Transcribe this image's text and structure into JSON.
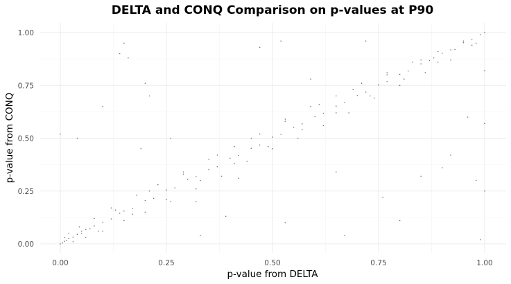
{
  "chart_data": {
    "type": "scatter",
    "title": "DELTA and CONQ Comparison on p-values at P90",
    "xlabel": "p-value from DELTA",
    "ylabel": "p-value from CONQ",
    "xlim": [
      0,
      1
    ],
    "ylim": [
      0,
      1
    ],
    "x_ticks": [
      0,
      0.25,
      0.5,
      0.75,
      1
    ],
    "y_ticks": [
      0,
      0.25,
      0.5,
      0.75,
      1
    ],
    "x_tick_labels": [
      "0.00",
      "0.25",
      "0.50",
      "0.75",
      "1.00"
    ],
    "y_tick_labels": [
      "0.00",
      "0.25",
      "0.50",
      "0.75",
      "1.00"
    ],
    "grid": true,
    "legend": "none",
    "point_color": "#000000",
    "background": "#ffffff",
    "series": [
      {
        "x": [
          0.0,
          0.005,
          0.01,
          0.015,
          0.02,
          0.03,
          0.04,
          0.05,
          0.06,
          0.07,
          0.08,
          0.1,
          0.12,
          0.14,
          0.15,
          0.17,
          0.2,
          0.22,
          0.25,
          0.27,
          0.3,
          0.32,
          0.35,
          0.37,
          0.4,
          0.42,
          0.45,
          0.47,
          0.5,
          0.52,
          0.55,
          0.57,
          0.6,
          0.62,
          0.65,
          0.67,
          0.7,
          0.72,
          0.75,
          0.77,
          0.8,
          0.82,
          0.85,
          0.87,
          0.9,
          0.92,
          0.95,
          0.97,
          0.99,
          1.0,
          0.02,
          0.03,
          0.045,
          0.06,
          0.08,
          0.1,
          0.12,
          0.15,
          0.18,
          0.2,
          0.23,
          0.26,
          0.29,
          0.32,
          0.35,
          0.38,
          0.41,
          0.44,
          0.47,
          0.5,
          0.53,
          0.56,
          0.59,
          0.62,
          0.65,
          0.68,
          0.71,
          0.74,
          0.77,
          0.8,
          0.83,
          0.86,
          0.89,
          0.92,
          0.95,
          0.98,
          0.01,
          0.05,
          0.09,
          0.13,
          0.17,
          0.21,
          0.25,
          0.29,
          0.33,
          0.37,
          0.41,
          0.45,
          0.49,
          0.53,
          0.57,
          0.61,
          0.65,
          0.69,
          0.73,
          0.77,
          0.81,
          0.85,
          0.89,
          0.93,
          0.97,
          0.0,
          0.04,
          0.1,
          0.14,
          0.15,
          0.16,
          0.19,
          0.2,
          0.21,
          0.26,
          0.32,
          0.33,
          0.39,
          0.47,
          0.52,
          0.59,
          0.65,
          0.72,
          0.76,
          0.8,
          0.85,
          0.88,
          0.9,
          0.92,
          0.96,
          0.98,
          0.99,
          1.0,
          1.0,
          1.0,
          0.53,
          0.42,
          0.67
        ],
        "y": [
          0.0,
          0.004,
          0.012,
          0.016,
          0.025,
          0.032,
          0.045,
          0.05,
          0.068,
          0.072,
          0.085,
          0.102,
          0.118,
          0.145,
          0.155,
          0.168,
          0.205,
          0.215,
          0.255,
          0.265,
          0.305,
          0.318,
          0.352,
          0.365,
          0.405,
          0.418,
          0.452,
          0.468,
          0.505,
          0.518,
          0.552,
          0.568,
          0.602,
          0.618,
          0.652,
          0.668,
          0.702,
          0.718,
          0.752,
          0.768,
          0.802,
          0.818,
          0.852,
          0.868,
          0.902,
          0.918,
          0.952,
          0.968,
          0.99,
          1.0,
          0.05,
          0.01,
          0.08,
          0.03,
          0.12,
          0.06,
          0.17,
          0.11,
          0.23,
          0.15,
          0.28,
          0.2,
          0.34,
          0.26,
          0.4,
          0.32,
          0.46,
          0.39,
          0.52,
          0.45,
          0.59,
          0.5,
          0.65,
          0.56,
          0.7,
          0.62,
          0.76,
          0.69,
          0.81,
          0.75,
          0.86,
          0.81,
          0.91,
          0.87,
          0.96,
          0.95,
          0.03,
          0.06,
          0.06,
          0.16,
          0.14,
          0.25,
          0.21,
          0.33,
          0.3,
          0.42,
          0.38,
          0.5,
          0.46,
          0.58,
          0.54,
          0.66,
          0.62,
          0.73,
          0.7,
          0.8,
          0.78,
          0.87,
          0.86,
          0.92,
          0.94,
          0.52,
          0.5,
          0.65,
          0.9,
          0.95,
          0.88,
          0.45,
          0.76,
          0.7,
          0.5,
          0.2,
          0.04,
          0.13,
          0.93,
          0.96,
          0.78,
          0.34,
          0.96,
          0.22,
          0.11,
          0.32,
          0.88,
          0.36,
          0.42,
          0.6,
          0.3,
          0.02,
          0.82,
          0.57,
          0.25,
          0.1,
          0.31,
          0.04
        ]
      }
    ]
  }
}
